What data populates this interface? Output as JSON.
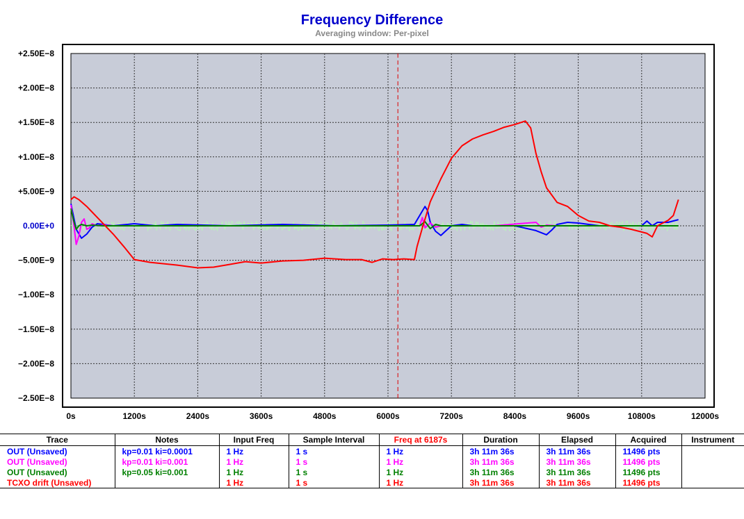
{
  "chart_data": {
    "type": "line",
    "title": "Frequency Difference",
    "subtitle": "Averaging window: Per-pixel",
    "xlabel": "",
    "ylabel": "",
    "xlim": [
      0,
      12000
    ],
    "ylim": [
      -2.5e-08,
      2.5e-08
    ],
    "x_ticks": [
      0,
      1200,
      2400,
      3600,
      4800,
      6000,
      7200,
      8400,
      9600,
      10800,
      12000
    ],
    "x_tick_labels": [
      "0s",
      "1200s",
      "2400s",
      "3600s",
      "4800s",
      "6000s",
      "7200s",
      "8400s",
      "9600s",
      "10800s",
      "12000s"
    ],
    "y_ticks": [
      2.5e-08,
      2e-08,
      1.5e-08,
      1e-08,
      5e-09,
      0,
      -5e-09,
      -1e-08,
      -1.5e-08,
      -2e-08,
      -2.5e-08
    ],
    "y_tick_labels": [
      "+2.50E−8",
      "+2.00E−8",
      "+1.50E−8",
      "+1.00E−8",
      "+5.00E−9",
      "0.00E+0",
      "−5.00E−9",
      "−1.00E−8",
      "−1.50E−8",
      "−2.00E−8",
      "−2.50E−8"
    ],
    "cursor_x": 6187,
    "grid": true,
    "series": [
      {
        "name": "OUT (Unsaved)",
        "color": "#0000ff",
        "x": [
          0,
          100,
          200,
          300,
          400,
          500,
          600,
          800,
          1200,
          1600,
          2000,
          3000,
          4000,
          5000,
          6000,
          6500,
          6600,
          6700,
          6750,
          6800,
          6900,
          7000,
          7100,
          7200,
          7400,
          7600,
          8000,
          8400,
          8800,
          9000,
          9100,
          9200,
          9400,
          9600,
          10000,
          10400,
          10800,
          10900,
          11000,
          11100,
          11300,
          11496
        ],
        "y": [
          3.2e-09,
          -5e-10,
          -1.8e-09,
          -1.2e-09,
          -2e-10,
          3e-10,
          2e-10,
          0,
          3e-10,
          0,
          2e-10,
          0,
          2e-10,
          0,
          1e-10,
          2e-10,
          1.5e-09,
          2.8e-09,
          2.2e-09,
          5e-10,
          -8e-10,
          -1.4e-09,
          -7e-10,
          0,
          2e-10,
          0,
          0,
          0,
          -7e-10,
          -1.3e-09,
          -6e-10,
          2e-10,
          5e-10,
          4e-10,
          0,
          0,
          0,
          7e-10,
          0,
          5e-10,
          5e-10,
          9e-10
        ]
      },
      {
        "name": "OUT (Unsaved)",
        "color": "#ff00ff",
        "x": [
          0,
          50,
          100,
          150,
          200,
          250,
          300,
          350,
          400,
          500,
          600,
          800,
          1200,
          2000,
          3000,
          4000,
          5000,
          6000,
          6600,
          6650,
          6700,
          6800,
          6900,
          7000,
          8000,
          8800,
          8900,
          9000,
          9200,
          10000,
          11000,
          11496
        ],
        "y": [
          3e-09,
          5e-10,
          -2.7e-09,
          -1.5e-09,
          5e-10,
          1e-09,
          -5e-10,
          -3e-10,
          3e-10,
          0,
          1e-10,
          0,
          0,
          0,
          0,
          0,
          0,
          0,
          0,
          1.2e-09,
          -3e-10,
          4e-10,
          -2e-10,
          0,
          0,
          5e-10,
          -2e-10,
          1e-10,
          0,
          0,
          0,
          0
        ]
      },
      {
        "name": "OUT (Unsaved)",
        "color": "#008000",
        "x": [
          0,
          50,
          100,
          150,
          200,
          300,
          400,
          600,
          800,
          1200,
          2000,
          3000,
          4000,
          5000,
          6000,
          6600,
          6700,
          6800,
          6900,
          7000,
          8000,
          9000,
          10000,
          11000,
          11496
        ],
        "y": [
          2.5e-09,
          8e-10,
          -5e-10,
          0,
          2e-10,
          0,
          1e-10,
          0,
          0,
          0,
          0,
          0,
          0,
          0,
          0,
          0,
          6e-10,
          -4e-10,
          2e-10,
          0,
          0,
          0,
          0,
          0,
          0
        ]
      },
      {
        "name": "TCXO drift (Unsaved)",
        "color": "#ff0000",
        "x": [
          0,
          60,
          150,
          300,
          500,
          800,
          1000,
          1200,
          1500,
          2000,
          2400,
          2700,
          3000,
          3300,
          3600,
          4000,
          4400,
          4800,
          5200,
          5500,
          5700,
          5900,
          6100,
          6300,
          6500,
          6550,
          6650,
          6800,
          7000,
          7200,
          7400,
          7600,
          7800,
          8000,
          8200,
          8400,
          8600,
          8700,
          8800,
          8900,
          9000,
          9200,
          9400,
          9600,
          9800,
          10000,
          10200,
          10400,
          10600,
          10800,
          10900,
          11000,
          11100,
          11200,
          11300,
          11400,
          11496
        ],
        "y": [
          3.8e-09,
          4.2e-09,
          3.8e-09,
          2.8e-09,
          1.2e-09,
          -1.2e-09,
          -3e-09,
          -4.9e-09,
          -5.3e-09,
          -5.7e-09,
          -6.1e-09,
          -6e-09,
          -5.6e-09,
          -5.2e-09,
          -5.4e-09,
          -5.1e-09,
          -5e-09,
          -4.7e-09,
          -4.9e-09,
          -4.9e-09,
          -5.3e-09,
          -4.8e-09,
          -4.9e-09,
          -4.8e-09,
          -4.9e-09,
          -3e-09,
          -3e-10,
          3.5e-09,
          6.8e-09,
          9.8e-09,
          1.16e-08,
          1.26e-08,
          1.32e-08,
          1.37e-08,
          1.43e-08,
          1.47e-08,
          1.52e-08,
          1.42e-08,
          1.05e-08,
          7.8e-09,
          5.5e-09,
          3.4e-09,
          2.8e-09,
          1.5e-09,
          7e-10,
          5e-10,
          0,
          -2e-10,
          -5e-10,
          -9e-10,
          -1.1e-09,
          -1.6e-09,
          0,
          4e-10,
          8e-10,
          1.5e-09,
          3.8e-09
        ]
      }
    ]
  },
  "table": {
    "headers": [
      "Trace",
      "Notes",
      "Input Freq",
      "Sample Interval",
      "Freq at 6187s",
      "Duration",
      "Elapsed",
      "Acquired",
      "Instrument"
    ],
    "rows": [
      {
        "color": "#0000ff",
        "cells": [
          "OUT (Unsaved)",
          "kp=0.01 ki=0.0001",
          "1 Hz",
          "1 s",
          "1 Hz",
          "3h 11m 36s",
          "3h 11m 36s",
          "11496 pts",
          ""
        ]
      },
      {
        "color": "#ff00ff",
        "cells": [
          "OUT (Unsaved)",
          "kp=0.01 ki=0.001",
          "1 Hz",
          "1 s",
          "1 Hz",
          "3h 11m 36s",
          "3h 11m 36s",
          "11496 pts",
          ""
        ]
      },
      {
        "color": "#008000",
        "cells": [
          "OUT (Unsaved)",
          "kp=0.05 ki=0.001",
          "1 Hz",
          "1 s",
          "1 Hz",
          "3h 11m 36s",
          "3h 11m 36s",
          "11496 pts",
          ""
        ]
      },
      {
        "color": "#ff0000",
        "cells": [
          "TCXO drift (Unsaved)",
          "",
          "1 Hz",
          "1 s",
          "1 Hz",
          "3h 11m 36s",
          "3h 11m 36s",
          "11496 pts",
          ""
        ]
      }
    ]
  },
  "colors": {
    "plot_background": "#c8ccd8",
    "title": "#0000cc",
    "cursor": "#dd0000",
    "noise_band": "#b8f5b8"
  }
}
